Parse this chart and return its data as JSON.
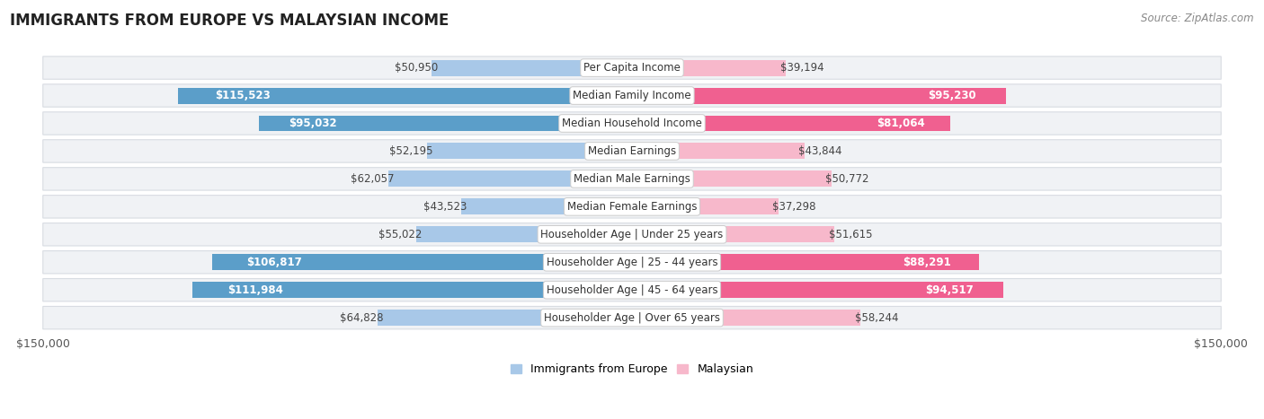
{
  "title": "IMMIGRANTS FROM EUROPE VS MALAYSIAN INCOME",
  "source": "Source: ZipAtlas.com",
  "categories": [
    "Per Capita Income",
    "Median Family Income",
    "Median Household Income",
    "Median Earnings",
    "Median Male Earnings",
    "Median Female Earnings",
    "Householder Age | Under 25 years",
    "Householder Age | 25 - 44 years",
    "Householder Age | 45 - 64 years",
    "Householder Age | Over 65 years"
  ],
  "europe_values": [
    50950,
    115523,
    95032,
    52195,
    62057,
    43523,
    55022,
    106817,
    111984,
    64828
  ],
  "malaysian_values": [
    39194,
    95230,
    81064,
    43844,
    50772,
    37298,
    51615,
    88291,
    94517,
    58244
  ],
  "europe_labels": [
    "$50,950",
    "$115,523",
    "$95,032",
    "$52,195",
    "$62,057",
    "$43,523",
    "$55,022",
    "$106,817",
    "$111,984",
    "$64,828"
  ],
  "malaysian_labels": [
    "$39,194",
    "$95,230",
    "$81,064",
    "$43,844",
    "$50,772",
    "$37,298",
    "$51,615",
    "$88,291",
    "$94,517",
    "$58,244"
  ],
  "max_value": 150000,
  "europe_color_light": "#a8c8e8",
  "europe_color_dark": "#5b9ec9",
  "malaysian_color_light": "#f7b8cb",
  "malaysian_color_dark": "#f06090",
  "inside_threshold": 80000,
  "row_bg_color": "#f0f2f5",
  "row_border_color": "#d8dce2",
  "background_color": "#ffffff",
  "title_fontsize": 12,
  "source_fontsize": 8.5,
  "label_fontsize": 8.5,
  "category_fontsize": 8.5,
  "axis_label_fontsize": 9,
  "legend_europe": "Immigrants from Europe",
  "legend_malaysian": "Malaysian",
  "x_axis_label_left": "$150,000",
  "x_axis_label_right": "$150,000"
}
